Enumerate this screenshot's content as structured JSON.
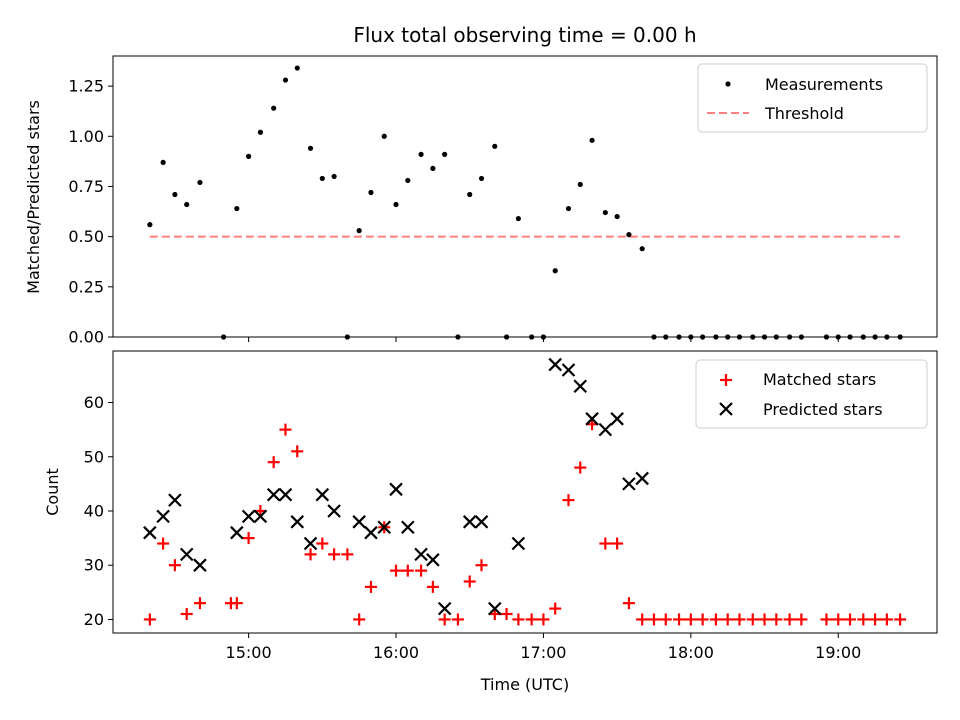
{
  "figure": {
    "title": "Flux total observing time = 0.00 h"
  },
  "chart_data": [
    {
      "type": "scatter",
      "ylabel": "Matched/Predicted stars",
      "xlabel": "",
      "xlim": [
        14.08,
        19.67
      ],
      "ylim": [
        0,
        1.4
      ],
      "yticks": [
        0.0,
        0.25,
        0.5,
        0.75,
        1.0,
        1.25
      ],
      "ytick_labels": [
        "0.00",
        "0.25",
        "0.50",
        "0.75",
        "1.00",
        "1.25"
      ],
      "legend": {
        "placement": "top-right",
        "measurements_label": "Measurements",
        "threshold_label": "Threshold"
      },
      "threshold": {
        "value": 0.5,
        "x_start": 14.33,
        "x_end": 19.42,
        "color": "#ff7f7f"
      },
      "measurements": {
        "color": "#000000",
        "x": [
          14.33,
          14.42,
          14.5,
          14.58,
          14.67,
          14.83,
          14.92,
          15.0,
          15.08,
          15.17,
          15.25,
          15.33,
          15.42,
          15.5,
          15.58,
          15.67,
          15.75,
          15.83,
          15.92,
          16.0,
          16.08,
          16.17,
          16.25,
          16.33,
          16.42,
          16.5,
          16.58,
          16.67,
          16.75,
          16.83,
          16.92,
          17.0,
          17.08,
          17.17,
          17.25,
          17.33,
          17.42,
          17.5,
          17.58,
          17.67,
          17.75,
          17.83,
          17.92,
          18.0,
          18.08,
          18.17,
          18.25,
          18.33,
          18.42,
          18.5,
          18.58,
          18.67,
          18.75,
          18.92,
          19.0,
          19.08,
          19.17,
          19.25,
          19.33,
          19.42
        ],
        "y": [
          0.56,
          0.87,
          0.71,
          0.66,
          0.77,
          0.0,
          0.64,
          0.9,
          1.02,
          1.14,
          1.28,
          1.34,
          0.94,
          0.79,
          0.8,
          0.0,
          0.53,
          0.72,
          1.0,
          0.66,
          0.78,
          0.91,
          0.84,
          0.91,
          0.0,
          0.71,
          0.79,
          0.95,
          0.0,
          0.59,
          0.0,
          0.0,
          0.33,
          0.64,
          0.76,
          0.98,
          0.62,
          0.6,
          0.51,
          0.44,
          0.0,
          0.0,
          0.0,
          0.0,
          0.0,
          0.0,
          0.0,
          0.0,
          0.0,
          0.0,
          0.0,
          0.0,
          0.0,
          0.0,
          0.0,
          0.0,
          0.0,
          0.0,
          0.0,
          0.0
        ]
      }
    },
    {
      "type": "scatter",
      "ylabel": "Count",
      "xlabel": "Time (UTC)",
      "xlim": [
        14.08,
        19.67
      ],
      "ylim": [
        17.5,
        69.5
      ],
      "yticks": [
        20,
        30,
        40,
        50,
        60
      ],
      "ytick_labels": [
        "20",
        "30",
        "40",
        "50",
        "60"
      ],
      "xticks": [
        15,
        16,
        17,
        18,
        19
      ],
      "xtick_labels": [
        "15:00",
        "16:00",
        "17:00",
        "18:00",
        "19:00"
      ],
      "legend": {
        "placement": "top-right"
      },
      "series": [
        {
          "name": "Matched stars",
          "marker": "plus",
          "color": "#ff0000",
          "x": [
            14.33,
            14.42,
            14.5,
            14.58,
            14.67,
            14.88,
            14.92,
            15.0,
            15.08,
            15.17,
            15.25,
            15.33,
            15.42,
            15.5,
            15.58,
            15.67,
            15.75,
            15.83,
            15.92,
            16.0,
            16.08,
            16.17,
            16.25,
            16.33,
            16.42,
            16.5,
            16.58,
            16.67,
            16.75,
            16.83,
            16.92,
            17.0,
            17.08,
            17.17,
            17.25,
            17.33,
            17.42,
            17.5,
            17.58,
            17.67,
            17.75,
            17.83,
            17.92,
            18.0,
            18.08,
            18.17,
            18.25,
            18.33,
            18.42,
            18.5,
            18.58,
            18.67,
            18.75,
            18.92,
            19.0,
            19.08,
            19.17,
            19.25,
            19.33,
            19.42
          ],
          "values": [
            20,
            34,
            30,
            21,
            23,
            23,
            23,
            35,
            40,
            49,
            55,
            51,
            32,
            34,
            32,
            32,
            20,
            26,
            37,
            29,
            29,
            29,
            26,
            20,
            20,
            27,
            30,
            21,
            21,
            20,
            20,
            20,
            22,
            42,
            48,
            56,
            34,
            34,
            23,
            20,
            20,
            20,
            20,
            20,
            20,
            20,
            20,
            20,
            20,
            20,
            20,
            20,
            20,
            20,
            20,
            20,
            20,
            20,
            20,
            20
          ]
        },
        {
          "name": "Predicted stars",
          "marker": "x",
          "color": "#000000",
          "x": [
            14.33,
            14.42,
            14.5,
            14.58,
            14.67,
            14.92,
            15.0,
            15.08,
            15.17,
            15.25,
            15.33,
            15.42,
            15.5,
            15.58,
            15.75,
            15.83,
            15.92,
            16.0,
            16.08,
            16.17,
            16.25,
            16.33,
            16.5,
            16.58,
            16.67,
            16.83,
            17.08,
            17.17,
            17.25,
            17.33,
            17.42,
            17.5,
            17.58,
            17.67
          ],
          "values": [
            36,
            39,
            42,
            32,
            30,
            36,
            39,
            39,
            43,
            43,
            38,
            34,
            43,
            40,
            38,
            36,
            37,
            44,
            37,
            32,
            31,
            22,
            38,
            38,
            22,
            34,
            67,
            66,
            63,
            57,
            55,
            57,
            45,
            46
          ]
        }
      ]
    }
  ]
}
